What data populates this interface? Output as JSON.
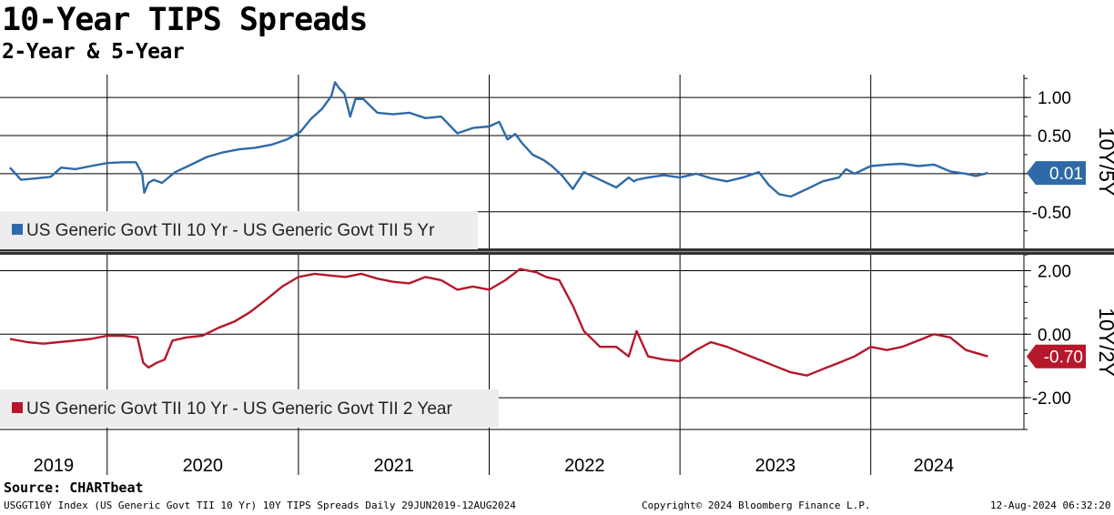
{
  "title": "10-Year TIPS Spreads",
  "subtitle": "2-Year & 5-Year",
  "source": "Source: CHARTbeat",
  "footer": {
    "left": "USGGT10Y Index (US Generic Govt TII 10 Yr) 10Y TIPS Spreads  Daily 29JUN2019-12AUG2024",
    "center": "Copyright© 2024 Bloomberg Finance L.P.",
    "right": "12-Aug-2024 06:32:20"
  },
  "colors": {
    "blue": "#2e6aa8",
    "red": "#b5172b",
    "grid": "#000000",
    "divider": "#333333"
  },
  "x_axis": {
    "year_labels": [
      "2019",
      "2020",
      "2021",
      "2022",
      "2023",
      "2024"
    ]
  },
  "chart_data": [
    {
      "type": "line",
      "panel_label": "10Y/5Y",
      "legend": "US Generic Govt TII 10 Yr - US Generic Govt TII 5 Yr",
      "last_value_label": "0.01",
      "color": "#2e6aa8",
      "ylim": [
        -0.98,
        1.3
      ],
      "yticks": [
        1.0,
        0.5,
        0.0,
        -0.5
      ],
      "ytick_labels": [
        "1.00",
        "0.50",
        "",
        "-0.50"
      ],
      "grid_values": [
        1.0,
        0.5,
        0.0,
        -0.5
      ],
      "x": [
        "2019-06-29",
        "2019-07-20",
        "2019-08-20",
        "2019-09-15",
        "2019-10-05",
        "2019-11-01",
        "2019-12-01",
        "2020-01-01",
        "2020-02-01",
        "2020-02-25",
        "2020-03-08",
        "2020-03-12",
        "2020-03-20",
        "2020-03-30",
        "2020-04-15",
        "2020-05-10",
        "2020-06-10",
        "2020-07-10",
        "2020-08-10",
        "2020-09-10",
        "2020-10-10",
        "2020-11-10",
        "2020-12-10",
        "2021-01-05",
        "2021-01-25",
        "2021-02-15",
        "2021-03-05",
        "2021-03-12",
        "2021-03-20",
        "2021-03-30",
        "2021-04-10",
        "2021-04-20",
        "2021-05-05",
        "2021-06-01",
        "2021-07-01",
        "2021-08-01",
        "2021-09-01",
        "2021-10-01",
        "2021-11-01",
        "2021-12-01",
        "2022-01-01",
        "2022-01-20",
        "2022-02-05",
        "2022-02-20",
        "2022-03-05",
        "2022-03-25",
        "2022-04-15",
        "2022-05-01",
        "2022-05-20",
        "2022-06-10",
        "2022-07-01",
        "2022-08-01",
        "2022-09-01",
        "2022-09-25",
        "2022-10-05",
        "2022-10-10",
        "2022-11-01",
        "2022-12-01",
        "2023-01-01",
        "2023-02-01",
        "2023-03-01",
        "2023-04-01",
        "2023-05-01",
        "2023-06-01",
        "2023-06-20",
        "2023-07-10",
        "2023-08-01",
        "2023-09-01",
        "2023-10-01",
        "2023-11-01",
        "2023-11-15",
        "2023-12-01",
        "2024-01-01",
        "2024-02-01",
        "2024-03-01",
        "2024-04-01",
        "2024-05-01",
        "2024-06-01",
        "2024-07-01",
        "2024-07-20",
        "2024-08-12"
      ],
      "values": [
        0.08,
        -0.08,
        -0.06,
        -0.04,
        0.08,
        0.06,
        0.1,
        0.14,
        0.15,
        0.15,
        0.0,
        -0.25,
        -0.12,
        -0.08,
        -0.12,
        0.02,
        0.12,
        0.22,
        0.28,
        0.32,
        0.34,
        0.38,
        0.45,
        0.55,
        0.72,
        0.85,
        1.02,
        1.2,
        1.12,
        1.05,
        0.75,
        0.98,
        0.98,
        0.8,
        0.78,
        0.8,
        0.73,
        0.75,
        0.53,
        0.6,
        0.62,
        0.68,
        0.45,
        0.52,
        0.4,
        0.25,
        0.18,
        0.1,
        -0.02,
        -0.2,
        0.02,
        -0.08,
        -0.18,
        -0.05,
        -0.1,
        -0.08,
        -0.05,
        -0.02,
        -0.05,
        0.0,
        -0.06,
        -0.1,
        -0.05,
        0.02,
        -0.15,
        -0.27,
        -0.3,
        -0.2,
        -0.1,
        -0.05,
        0.06,
        0.0,
        0.1,
        0.12,
        0.13,
        0.1,
        0.12,
        0.03,
        0.0,
        -0.03,
        0.01
      ]
    },
    {
      "type": "line",
      "panel_label": "10Y/2Y",
      "legend": "US Generic Govt TII 10 Yr - US Generic Govt TII 2 Year",
      "last_value_label": "-0.70",
      "color": "#b5172b",
      "ylim": [
        -3.0,
        2.5
      ],
      "yticks": [
        2.0,
        0.0,
        -2.0
      ],
      "ytick_labels": [
        "2.00",
        "0.00",
        "-2.00"
      ],
      "grid_values": [
        2.0,
        0.0,
        -2.0
      ],
      "x": [
        "2019-06-29",
        "2019-08-01",
        "2019-09-01",
        "2019-10-01",
        "2019-11-01",
        "2019-12-01",
        "2020-01-01",
        "2020-02-01",
        "2020-02-28",
        "2020-03-10",
        "2020-03-20",
        "2020-04-05",
        "2020-04-20",
        "2020-05-05",
        "2020-06-01",
        "2020-07-01",
        "2020-08-01",
        "2020-09-01",
        "2020-10-01",
        "2020-11-01",
        "2020-12-01",
        "2021-01-01",
        "2021-02-01",
        "2021-03-01",
        "2021-04-01",
        "2021-05-01",
        "2021-06-01",
        "2021-07-01",
        "2021-08-01",
        "2021-09-01",
        "2021-10-01",
        "2021-11-01",
        "2021-12-01",
        "2022-01-01",
        "2022-02-01",
        "2022-03-01",
        "2022-04-01",
        "2022-04-20",
        "2022-05-15",
        "2022-06-10",
        "2022-07-01",
        "2022-08-01",
        "2022-09-01",
        "2022-09-25",
        "2022-10-10",
        "2022-11-01",
        "2022-12-01",
        "2023-01-01",
        "2023-02-01",
        "2023-03-01",
        "2023-04-01",
        "2023-05-01",
        "2023-06-01",
        "2023-07-01",
        "2023-08-01",
        "2023-09-01",
        "2023-10-01",
        "2023-11-01",
        "2023-12-01",
        "2024-01-01",
        "2024-02-01",
        "2024-03-01",
        "2024-04-01",
        "2024-05-01",
        "2024-06-01",
        "2024-07-01",
        "2024-08-12"
      ],
      "values": [
        -0.15,
        -0.25,
        -0.3,
        -0.25,
        -0.2,
        -0.15,
        -0.05,
        -0.05,
        -0.1,
        -0.9,
        -1.05,
        -0.9,
        -0.8,
        -0.2,
        -0.1,
        -0.05,
        0.2,
        0.4,
        0.7,
        1.1,
        1.5,
        1.8,
        1.9,
        1.85,
        1.8,
        1.9,
        1.75,
        1.65,
        1.6,
        1.8,
        1.7,
        1.4,
        1.5,
        1.4,
        1.7,
        2.05,
        1.95,
        1.8,
        1.7,
        0.9,
        0.1,
        -0.4,
        -0.4,
        -0.7,
        0.1,
        -0.7,
        -0.8,
        -0.85,
        -0.5,
        -0.25,
        -0.4,
        -0.6,
        -0.8,
        -1.0,
        -1.2,
        -1.3,
        -1.1,
        -0.9,
        -0.7,
        -0.4,
        -0.5,
        -0.4,
        -0.2,
        0.0,
        -0.1,
        -0.5,
        -0.7
      ]
    }
  ]
}
